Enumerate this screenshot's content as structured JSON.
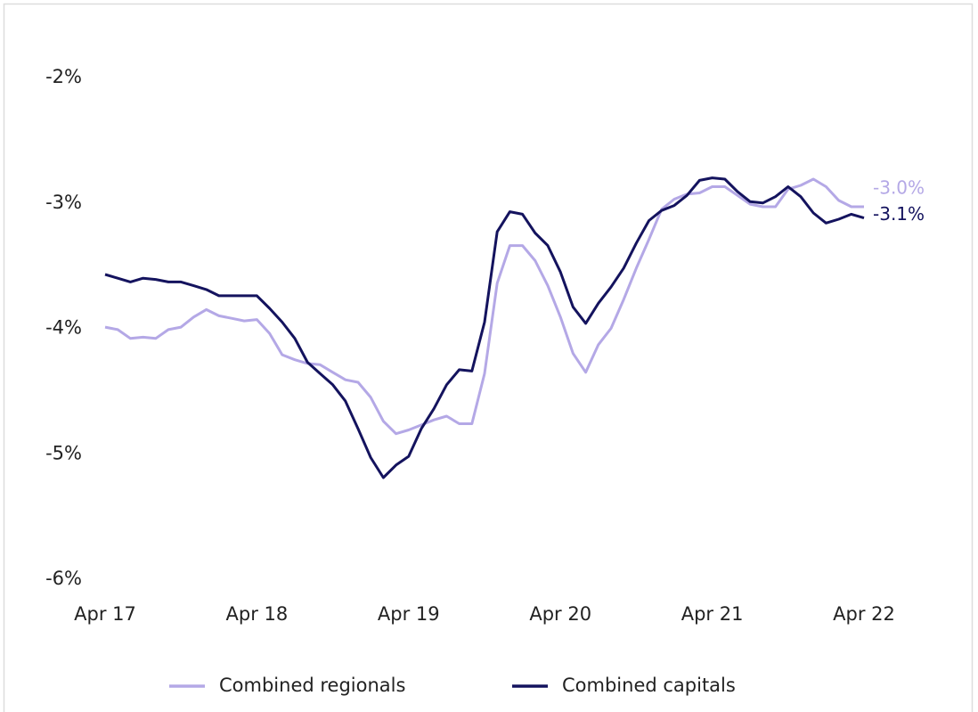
{
  "chart_data": {
    "type": "line",
    "categories": [
      "Apr 17",
      null,
      null,
      null,
      null,
      null,
      null,
      null,
      null,
      null,
      null,
      null,
      "Apr 18",
      null,
      null,
      null,
      null,
      null,
      null,
      null,
      null,
      null,
      null,
      null,
      "Apr 19",
      null,
      null,
      null,
      null,
      null,
      null,
      null,
      null,
      null,
      null,
      null,
      "Apr 20",
      null,
      null,
      null,
      null,
      null,
      null,
      null,
      null,
      null,
      null,
      null,
      "Apr 21",
      null,
      null,
      null,
      null,
      null,
      null,
      null,
      null,
      null,
      null,
      null,
      "Apr 22"
    ],
    "series": [
      {
        "name": "Combined regionals",
        "color": "#b4a8e6",
        "values": [
          -3.99,
          -4.01,
          -4.08,
          -4.07,
          -4.08,
          -4.01,
          -3.99,
          -3.91,
          -3.85,
          -3.9,
          -3.92,
          -3.94,
          -3.93,
          -4.04,
          -4.21,
          -4.25,
          -4.28,
          -4.29,
          -4.35,
          -4.41,
          -4.43,
          -4.55,
          -4.74,
          -4.84,
          -4.81,
          -4.77,
          -4.73,
          -4.7,
          -4.76,
          -4.76,
          -4.36,
          -3.64,
          -3.34,
          -3.34,
          -3.46,
          -3.66,
          -3.91,
          -4.2,
          -4.35,
          -4.13,
          -4.0,
          -3.77,
          -3.52,
          -3.29,
          -3.05,
          -2.97,
          -2.93,
          -2.92,
          -2.87,
          -2.87,
          -2.94,
          -3.01,
          -3.03,
          -3.03,
          -2.89,
          -2.86,
          -2.81,
          -2.87,
          -2.98,
          -3.03,
          -3.03
        ],
        "value_labels": [
          null,
          null,
          null,
          null,
          null,
          null,
          null,
          null,
          null,
          null,
          null,
          null,
          null,
          null,
          null,
          null,
          null,
          null,
          null,
          null,
          null,
          null,
          null,
          null,
          null,
          null,
          null,
          null,
          null,
          null,
          null,
          null,
          null,
          null,
          null,
          null,
          null,
          null,
          null,
          null,
          null,
          null,
          null,
          null,
          null,
          null,
          null,
          null,
          null,
          null,
          null,
          null,
          null,
          null,
          null,
          null,
          null,
          null,
          null,
          null,
          "-3.0%"
        ]
      },
      {
        "name": "Combined capitals",
        "color": "#14135e",
        "values": [
          -3.57,
          -3.6,
          -3.63,
          -3.6,
          -3.61,
          -3.63,
          -3.63,
          -3.66,
          -3.69,
          -3.74,
          -3.74,
          -3.74,
          -3.74,
          -3.84,
          -3.95,
          -4.08,
          -4.27,
          -4.36,
          -4.45,
          -4.58,
          -4.8,
          -5.03,
          -5.19,
          -5.09,
          -5.02,
          -4.8,
          -4.64,
          -4.45,
          -4.33,
          -4.34,
          -3.95,
          -3.23,
          -3.07,
          -3.09,
          -3.24,
          -3.34,
          -3.55,
          -3.83,
          -3.96,
          -3.8,
          -3.67,
          -3.52,
          -3.32,
          -3.14,
          -3.06,
          -3.02,
          -2.94,
          -2.82,
          -2.8,
          -2.81,
          -2.91,
          -2.99,
          -3.0,
          -2.95,
          -2.87,
          -2.95,
          -3.08,
          -3.16,
          -3.13,
          -3.09,
          -3.12
        ],
        "value_labels": [
          null,
          null,
          null,
          null,
          null,
          null,
          null,
          null,
          null,
          null,
          null,
          null,
          null,
          null,
          null,
          null,
          null,
          null,
          null,
          null,
          null,
          null,
          null,
          null,
          null,
          null,
          null,
          null,
          null,
          null,
          null,
          null,
          null,
          null,
          null,
          null,
          null,
          null,
          null,
          null,
          null,
          null,
          null,
          null,
          null,
          null,
          null,
          null,
          null,
          null,
          null,
          null,
          null,
          null,
          null,
          null,
          null,
          null,
          null,
          null,
          "-3.1%"
        ]
      }
    ],
    "ylim": [
      -6,
      -2
    ],
    "yticks": [
      {
        "value": -2,
        "label": "-2%"
      },
      {
        "value": -3,
        "label": "-3%"
      },
      {
        "value": -4,
        "label": "-4%"
      },
      {
        "value": -5,
        "label": "-5%"
      },
      {
        "value": -6,
        "label": "-6%"
      }
    ],
    "grid": false,
    "legend": "bottom"
  }
}
